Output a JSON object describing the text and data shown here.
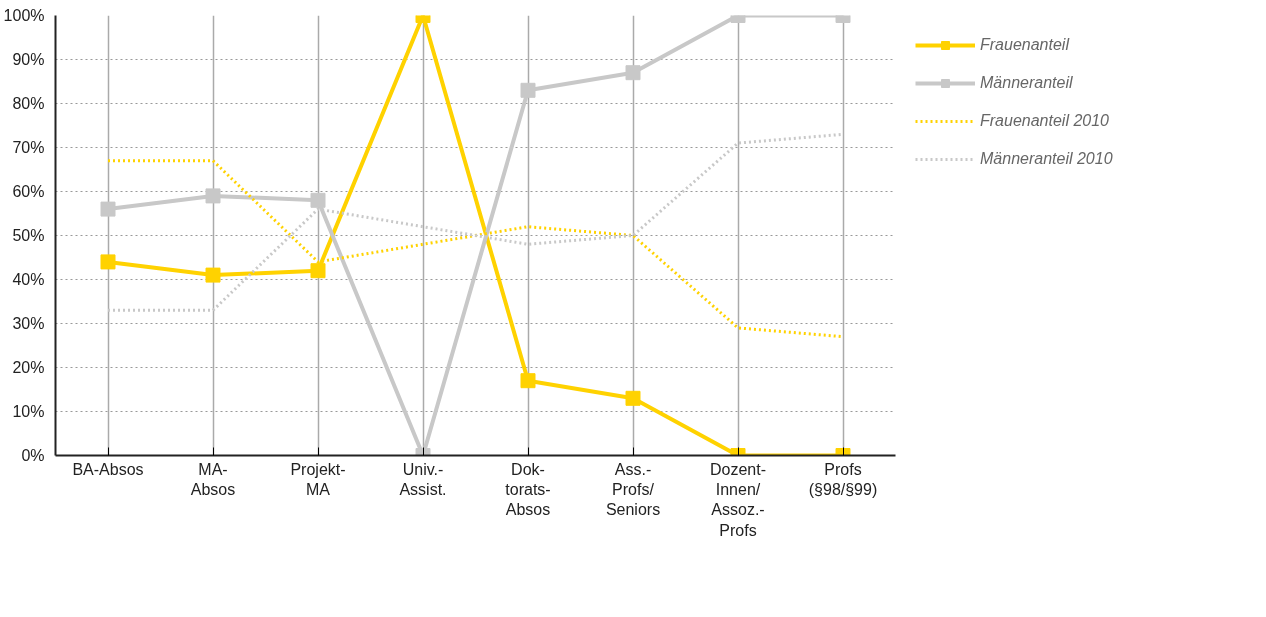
{
  "chart_data": {
    "type": "line",
    "categories": [
      "BA-Absos",
      "MA-\nAbsos",
      "Projekt-\nMA",
      "Univ.-\nAssist.",
      "Dok-\ntorats-\nAbsos",
      "Ass.-\nProfs/\nSeniors",
      "Dozent-\nInnen/\nAssoz.-\nProfs",
      "Profs\n(§98/§99)"
    ],
    "series": [
      {
        "name": "Frauenanteil",
        "color": "#ffd200",
        "values": [
          44,
          41,
          42,
          100,
          17,
          13,
          0,
          0
        ],
        "marker": "square",
        "line_style": "solid"
      },
      {
        "name": "Männeranteil",
        "color": "#c8c8c8",
        "values": [
          56,
          59,
          58,
          0,
          83,
          87,
          100,
          100
        ],
        "marker": "square",
        "line_style": "solid"
      },
      {
        "name": "Frauenanteil 2010",
        "color": "#ffd200",
        "values": [
          67,
          67,
          44,
          48,
          52,
          50,
          29,
          27
        ],
        "marker": "none",
        "line_style": "dotted"
      },
      {
        "name": "Männeranteil 2010",
        "color": "#c8c8c8",
        "values": [
          33,
          33,
          56,
          52,
          48,
          50,
          71,
          73
        ],
        "marker": "none",
        "line_style": "dotted"
      }
    ],
    "ylim": [
      0,
      100
    ],
    "yticks": [
      {
        "value": 0,
        "label": "0%"
      },
      {
        "value": 10,
        "label": "10%"
      },
      {
        "value": 20,
        "label": "20%"
      },
      {
        "value": 30,
        "label": "30%"
      },
      {
        "value": 40,
        "label": "40%"
      },
      {
        "value": 50,
        "label": "50%"
      },
      {
        "value": 60,
        "label": "60%"
      },
      {
        "value": 70,
        "label": "70%"
      },
      {
        "value": 80,
        "label": "80%"
      },
      {
        "value": 90,
        "label": "90%"
      },
      {
        "value": 100,
        "label": "100%"
      }
    ],
    "grid": true,
    "legend": "right"
  }
}
